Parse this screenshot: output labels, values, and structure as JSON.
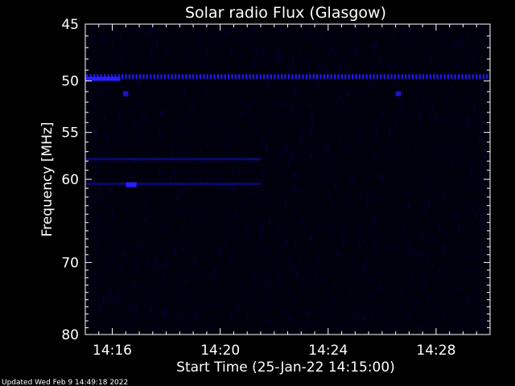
{
  "chart_data": {
    "type": "heatmap",
    "title": "Solar radio Flux (Glasgow)",
    "xlabel": "Start Time (25-Jan-22 14:15:00)",
    "ylabel": "Frequency [MHz]",
    "x_ticks": [
      "14:16",
      "14:20",
      "14:24",
      "14:28"
    ],
    "y_ticks": [
      "45",
      "50",
      "55",
      "60",
      "70",
      "80"
    ],
    "y_tick_values": [
      45,
      50,
      55,
      60,
      70,
      80
    ],
    "y_scale": "log",
    "ylim": [
      45,
      80
    ],
    "xlim_minutes_after_14:15": [
      0,
      15
    ],
    "x_tick_minutes_after_14:15": [
      1,
      5,
      9,
      13
    ],
    "colormap": "black-blue",
    "background": "#000000",
    "grid": false,
    "features": [
      {
        "kind": "band",
        "freq_mhz": 49.6,
        "t_start": 0,
        "t_end": 15,
        "intensity": 0.85
      },
      {
        "kind": "segment",
        "freq_mhz": 49.8,
        "t_start": 0,
        "t_end": 1.3,
        "intensity": 1.0
      },
      {
        "kind": "band",
        "freq_mhz": 57.8,
        "t_start": 0,
        "t_end": 6.5,
        "intensity": 0.35
      },
      {
        "kind": "band",
        "freq_mhz": 60.5,
        "t_start": 0,
        "t_end": 6.5,
        "intensity": 0.3
      },
      {
        "kind": "blob",
        "freq_mhz": 60.6,
        "t_start": 1.5,
        "t_end": 1.9,
        "intensity": 1.0
      },
      {
        "kind": "blob",
        "freq_mhz": 51.2,
        "t_start": 1.4,
        "t_end": 1.6,
        "intensity": 0.7
      },
      {
        "kind": "blob",
        "freq_mhz": 51.2,
        "t_start": 11.5,
        "t_end": 11.7,
        "intensity": 0.7
      }
    ]
  },
  "footer": {
    "updated": "Updated Wed Feb  9 14:49:18 2022"
  }
}
